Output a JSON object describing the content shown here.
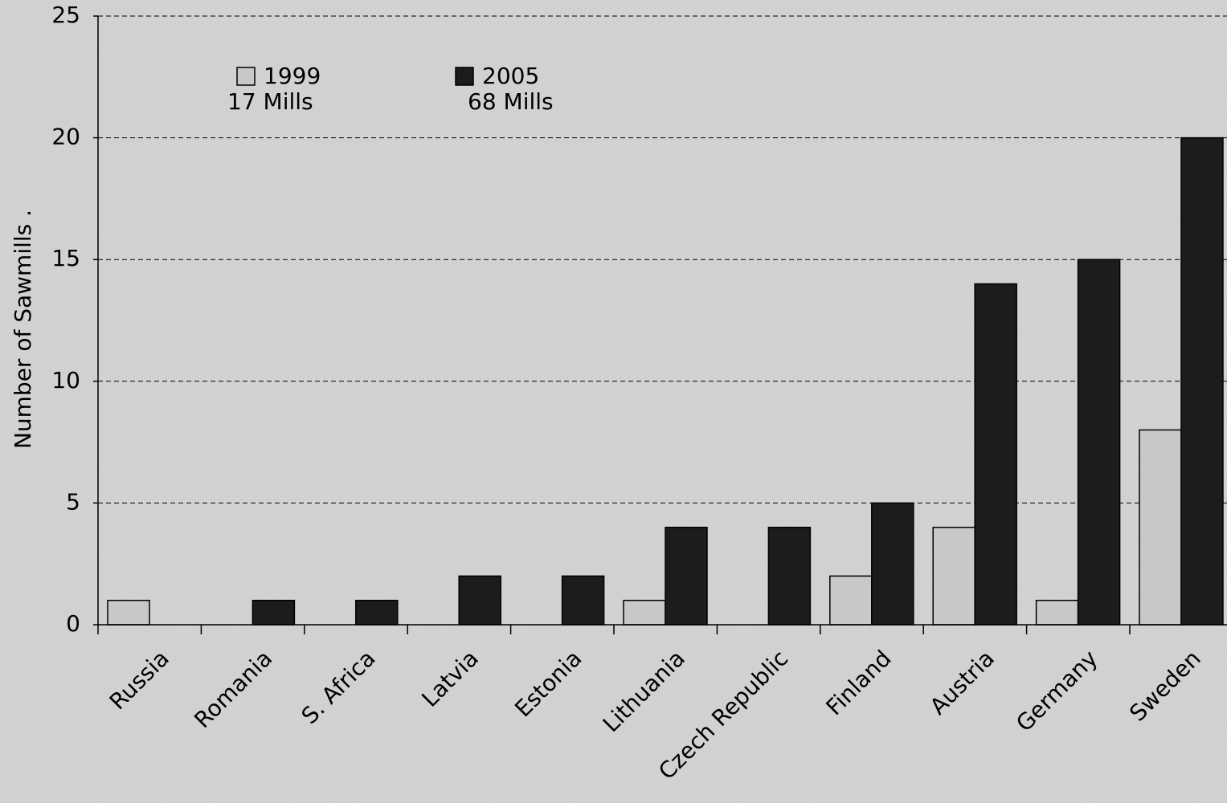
{
  "chart_data": {
    "type": "bar",
    "ylabel": "Number of Sawmills  .",
    "categories": [
      "Russia",
      "Romania",
      "S. Africa",
      "Latvia",
      "Estonia",
      "Lithuania",
      "Czech Republic",
      "Finland",
      "Austria",
      "Germany",
      "Sweden"
    ],
    "series": [
      {
        "name": "1999",
        "annotation": "17 Mills",
        "color": "#c8c8c8",
        "values": [
          1,
          0,
          0,
          0,
          0,
          1,
          0,
          2,
          4,
          1,
          8
        ]
      },
      {
        "name": "2005",
        "annotation": "68 Mills",
        "color": "#1c1c1c",
        "values": [
          0,
          1,
          1,
          2,
          2,
          4,
          4,
          5,
          14,
          15,
          20
        ]
      }
    ],
    "ylim": [
      0,
      25
    ],
    "yticks": [
      0,
      5,
      10,
      15,
      20,
      25
    ],
    "grid": true
  }
}
